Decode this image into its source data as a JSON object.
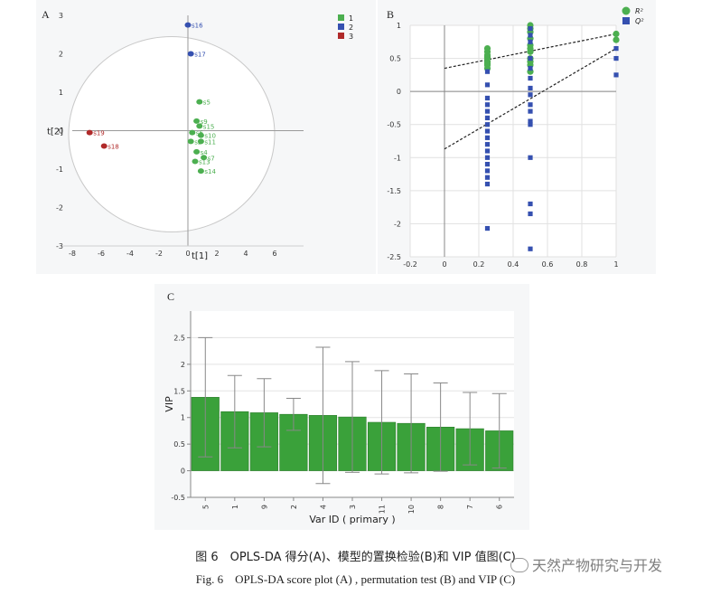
{
  "panelA": {
    "letter": "A",
    "xlabel": "t[1]",
    "ylabel": "t[2]",
    "legend": [
      {
        "label": "1",
        "color": "#4caf50"
      },
      {
        "label": "2",
        "color": "#3550b0"
      },
      {
        "label": "3",
        "color": "#b02a2a"
      }
    ]
  },
  "panelB": {
    "letter": "B",
    "legend": [
      {
        "label": "R²",
        "color": "#4caf50"
      },
      {
        "label": "Q²",
        "color": "#3550b0"
      }
    ]
  },
  "panelC": {
    "letter": "C",
    "xlabel": "Var ID ( primary )",
    "ylabel": "VIP",
    "bar_color": "#3aa13a"
  },
  "captions": {
    "cn": "图 6　OPLS-DA 得分(A)、模型的置换检验(B)和 VIP 值图(C)",
    "en": "Fig. 6　OPLS-DA score plot (A) , permutation test (B) and VIP (C)"
  },
  "watermark": "天然产物研究与开发",
  "chart_data": [
    {
      "type": "scatter",
      "xlim": [
        -8,
        8
      ],
      "ylim": [
        -3,
        3
      ],
      "xticks": [
        -8,
        -6,
        -4,
        -2,
        0,
        2,
        4,
        6
      ],
      "yticks": [
        -3,
        -2,
        -1,
        0,
        1,
        2,
        3
      ],
      "xlabel": "t[1]",
      "ylabel": "t[2]",
      "series": [
        {
          "name": "1",
          "color": "#4caf50",
          "points": [
            {
              "label": "s5",
              "x": 0.8,
              "y": 0.75
            },
            {
              "label": "s9",
              "x": 0.6,
              "y": 0.25
            },
            {
              "label": "s15",
              "x": 0.8,
              "y": 0.12
            },
            {
              "label": "s6",
              "x": 0.3,
              "y": -0.05
            },
            {
              "label": "s10",
              "x": 0.9,
              "y": -0.12
            },
            {
              "label": "s2",
              "x": 0.2,
              "y": -0.28
            },
            {
              "label": "s11",
              "x": 0.9,
              "y": -0.28
            },
            {
              "label": "s4",
              "x": 0.6,
              "y": -0.55
            },
            {
              "label": "s7",
              "x": 1.1,
              "y": -0.7
            },
            {
              "label": "s13",
              "x": 0.5,
              "y": -0.8
            },
            {
              "label": "s14",
              "x": 0.9,
              "y": -1.05
            }
          ]
        },
        {
          "name": "2",
          "color": "#3550b0",
          "points": [
            {
              "label": "s16",
              "x": 0.0,
              "y": 2.75
            },
            {
              "label": "s17",
              "x": 0.2,
              "y": 2.0
            }
          ]
        },
        {
          "name": "3",
          "color": "#b02a2a",
          "points": [
            {
              "label": "s19",
              "x": -6.8,
              "y": -0.05
            },
            {
              "label": "s18",
              "x": -5.8,
              "y": -0.4
            }
          ]
        }
      ]
    },
    {
      "type": "scatter",
      "xlim": [
        -0.2,
        1.0
      ],
      "ylim": [
        -2.5,
        1.0
      ],
      "xticks": [
        -0.2,
        0,
        0.2,
        0.4,
        0.6,
        0.8,
        1
      ],
      "yticks": [
        -2.5,
        -2,
        -1.5,
        -1,
        -0.5,
        0,
        0.5,
        1
      ],
      "series": [
        {
          "name": "R²",
          "color": "#4caf50",
          "marker": "circle",
          "points": [
            {
              "x": 0.25,
              "y": 0.4
            },
            {
              "x": 0.25,
              "y": 0.45
            },
            {
              "x": 0.25,
              "y": 0.5
            },
            {
              "x": 0.25,
              "y": 0.55
            },
            {
              "x": 0.25,
              "y": 0.6
            },
            {
              "x": 0.25,
              "y": 0.65
            },
            {
              "x": 0.25,
              "y": 0.35
            },
            {
              "x": 0.25,
              "y": 0.42
            },
            {
              "x": 0.25,
              "y": 0.52
            },
            {
              "x": 0.5,
              "y": 0.3
            },
            {
              "x": 0.5,
              "y": 0.4
            },
            {
              "x": 0.5,
              "y": 0.5
            },
            {
              "x": 0.5,
              "y": 0.6
            },
            {
              "x": 0.5,
              "y": 0.7
            },
            {
              "x": 0.5,
              "y": 0.8
            },
            {
              "x": 0.5,
              "y": 0.9
            },
            {
              "x": 0.5,
              "y": 1.0
            },
            {
              "x": 0.5,
              "y": 0.95
            },
            {
              "x": 0.5,
              "y": 0.45
            },
            {
              "x": 0.5,
              "y": 0.65
            },
            {
              "x": 1.0,
              "y": 0.87
            },
            {
              "x": 1.0,
              "y": 0.78
            }
          ]
        },
        {
          "name": "Q²",
          "color": "#3550b0",
          "marker": "square",
          "points": [
            {
              "x": 0.25,
              "y": 0.3
            },
            {
              "x": 0.25,
              "y": 0.1
            },
            {
              "x": 0.25,
              "y": -0.1
            },
            {
              "x": 0.25,
              "y": -0.2
            },
            {
              "x": 0.25,
              "y": -0.3
            },
            {
              "x": 0.25,
              "y": -0.4
            },
            {
              "x": 0.25,
              "y": -0.5
            },
            {
              "x": 0.25,
              "y": -0.6
            },
            {
              "x": 0.25,
              "y": -0.7
            },
            {
              "x": 0.25,
              "y": -0.8
            },
            {
              "x": 0.25,
              "y": -0.9
            },
            {
              "x": 0.25,
              "y": -1.0
            },
            {
              "x": 0.25,
              "y": -1.1
            },
            {
              "x": 0.25,
              "y": -1.2
            },
            {
              "x": 0.25,
              "y": -1.3
            },
            {
              "x": 0.25,
              "y": -1.4
            },
            {
              "x": 0.25,
              "y": -2.07
            },
            {
              "x": 0.5,
              "y": 0.95
            },
            {
              "x": 0.5,
              "y": 0.85
            },
            {
              "x": 0.5,
              "y": 0.75
            },
            {
              "x": 0.5,
              "y": 0.5
            },
            {
              "x": 0.5,
              "y": 0.35
            },
            {
              "x": 0.5,
              "y": 0.2
            },
            {
              "x": 0.5,
              "y": 0.05
            },
            {
              "x": 0.5,
              "y": -0.05
            },
            {
              "x": 0.5,
              "y": -0.2
            },
            {
              "x": 0.5,
              "y": -0.3
            },
            {
              "x": 0.5,
              "y": -0.45
            },
            {
              "x": 0.5,
              "y": -0.5
            },
            {
              "x": 0.5,
              "y": -1.0
            },
            {
              "x": 0.5,
              "y": -1.7
            },
            {
              "x": 0.5,
              "y": -1.85
            },
            {
              "x": 0.5,
              "y": -2.38
            },
            {
              "x": 1.0,
              "y": 0.65
            },
            {
              "x": 1.0,
              "y": 0.5
            },
            {
              "x": 1.0,
              "y": 0.25
            }
          ]
        }
      ],
      "regression_lines": [
        {
          "series": "R²",
          "from": {
            "x": 0,
            "y": 0.35
          },
          "to": {
            "x": 1,
            "y": 0.87
          }
        },
        {
          "series": "Q²",
          "from": {
            "x": 0,
            "y": -0.87
          },
          "to": {
            "x": 1,
            "y": 0.65
          }
        }
      ]
    },
    {
      "type": "bar",
      "categories": [
        "5",
        "1",
        "9",
        "2",
        "4",
        "3",
        "11",
        "10",
        "8",
        "7",
        "6"
      ],
      "values": [
        1.38,
        1.11,
        1.09,
        1.06,
        1.04,
        1.01,
        0.91,
        0.89,
        0.82,
        0.79,
        0.75
      ],
      "error": [
        1.12,
        0.68,
        0.64,
        0.3,
        1.28,
        1.04,
        0.97,
        0.93,
        0.83,
        0.68,
        0.7
      ],
      "xlabel": "Var ID ( primary )",
      "ylabel": "VIP",
      "ylim": [
        -0.5,
        3.0
      ],
      "yticks": [
        -0.5,
        0,
        0.5,
        1,
        1.5,
        2,
        2.5
      ]
    }
  ]
}
